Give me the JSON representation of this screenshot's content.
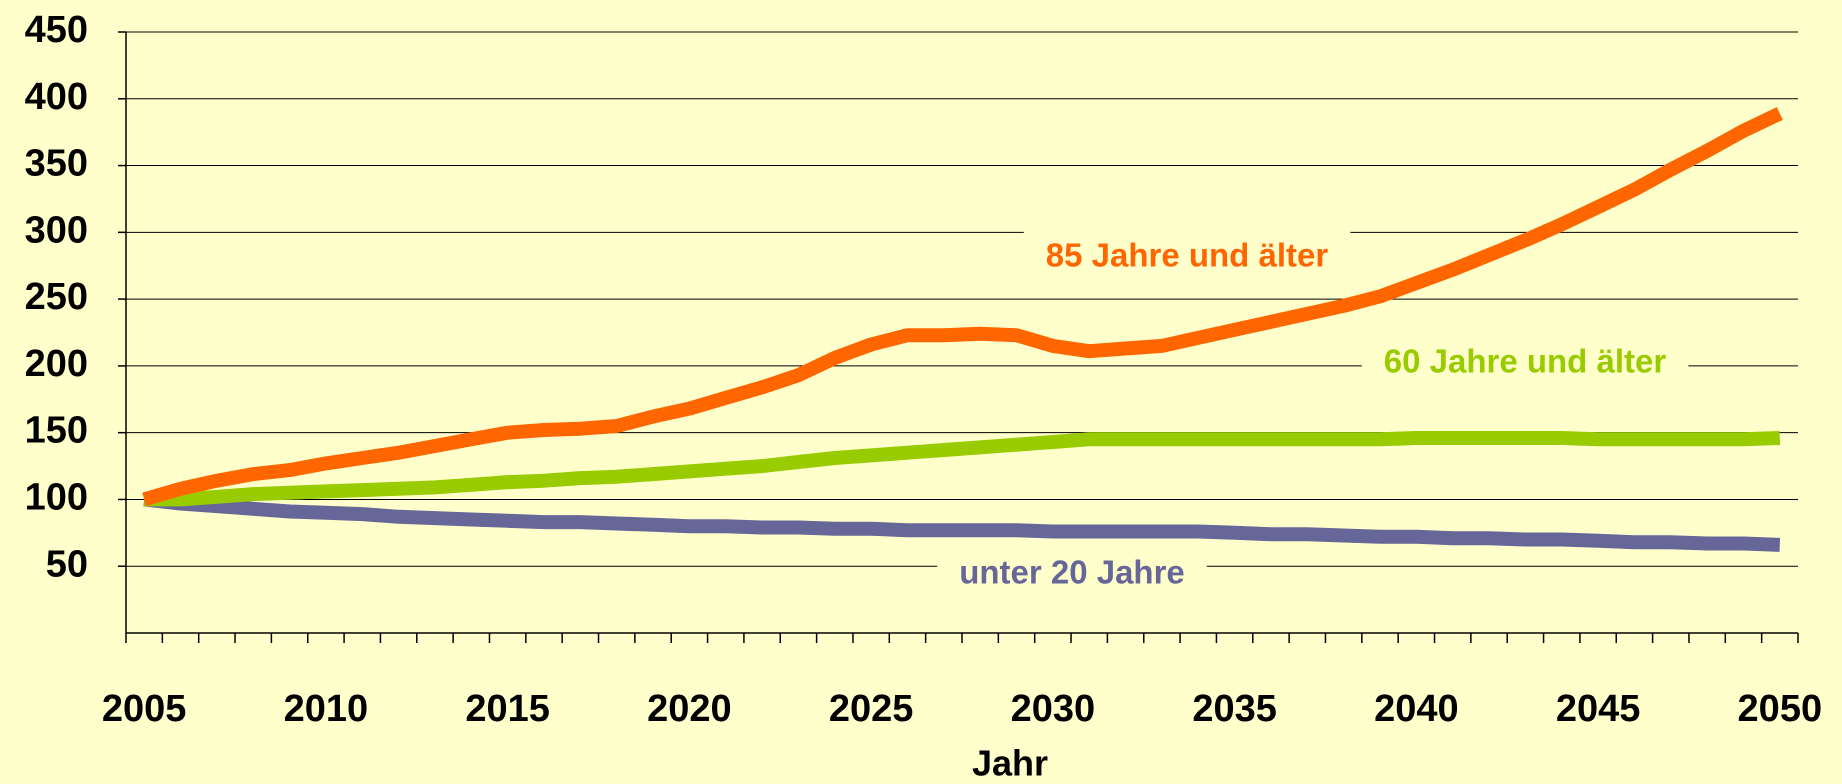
{
  "chart_data": {
    "type": "line",
    "x_label": "Jahr",
    "categories": [
      "2005",
      null,
      null,
      null,
      null,
      "2010",
      null,
      null,
      null,
      null,
      "2015",
      null,
      null,
      null,
      null,
      "2020",
      null,
      null,
      null,
      null,
      "2025",
      null,
      null,
      null,
      null,
      "2030",
      null,
      null,
      null,
      null,
      "2035",
      null,
      null,
      null,
      null,
      "2040",
      null,
      null,
      null,
      null,
      "2045",
      null,
      null,
      null,
      null,
      "2050"
    ],
    "ylim": [
      0,
      450
    ],
    "yticks": [
      50,
      100,
      150,
      200,
      250,
      300,
      350,
      400,
      450
    ],
    "grid": true,
    "series": [
      {
        "name": "85 Jahre und älter",
        "color": "#ff6600",
        "values": [
          100,
          108,
          114,
          119,
          122,
          127,
          131,
          135,
          140,
          145,
          150,
          152,
          153,
          155,
          162,
          168,
          176,
          184,
          193,
          206,
          216,
          223,
          223,
          224,
          223,
          215,
          211,
          213,
          215,
          221,
          227,
          233,
          239,
          245,
          252,
          262,
          272,
          283,
          294,
          306,
          319,
          332,
          347,
          361,
          376,
          389
        ]
      },
      {
        "name": "60 Jahre und älter",
        "color": "#99cc00",
        "values": [
          100,
          100,
          102,
          104,
          105,
          106,
          107,
          108,
          109,
          111,
          113,
          114,
          116,
          117,
          119,
          121,
          123,
          125,
          128,
          131,
          133,
          135,
          137,
          139,
          141,
          143,
          145,
          145,
          145,
          145,
          145,
          145,
          145,
          145,
          145,
          146,
          146,
          146,
          146,
          146,
          145,
          145,
          145,
          145,
          145,
          146
        ]
      },
      {
        "name": "unter 20 Jahre",
        "color": "#666699",
        "values": [
          100,
          97,
          95,
          93,
          91,
          90,
          89,
          87,
          86,
          85,
          84,
          83,
          83,
          82,
          81,
          80,
          80,
          79,
          79,
          78,
          78,
          77,
          77,
          77,
          77,
          76,
          76,
          76,
          76,
          76,
          75,
          74,
          74,
          73,
          72,
          72,
          71,
          71,
          70,
          70,
          69,
          68,
          68,
          67,
          67,
          66
        ]
      }
    ]
  }
}
